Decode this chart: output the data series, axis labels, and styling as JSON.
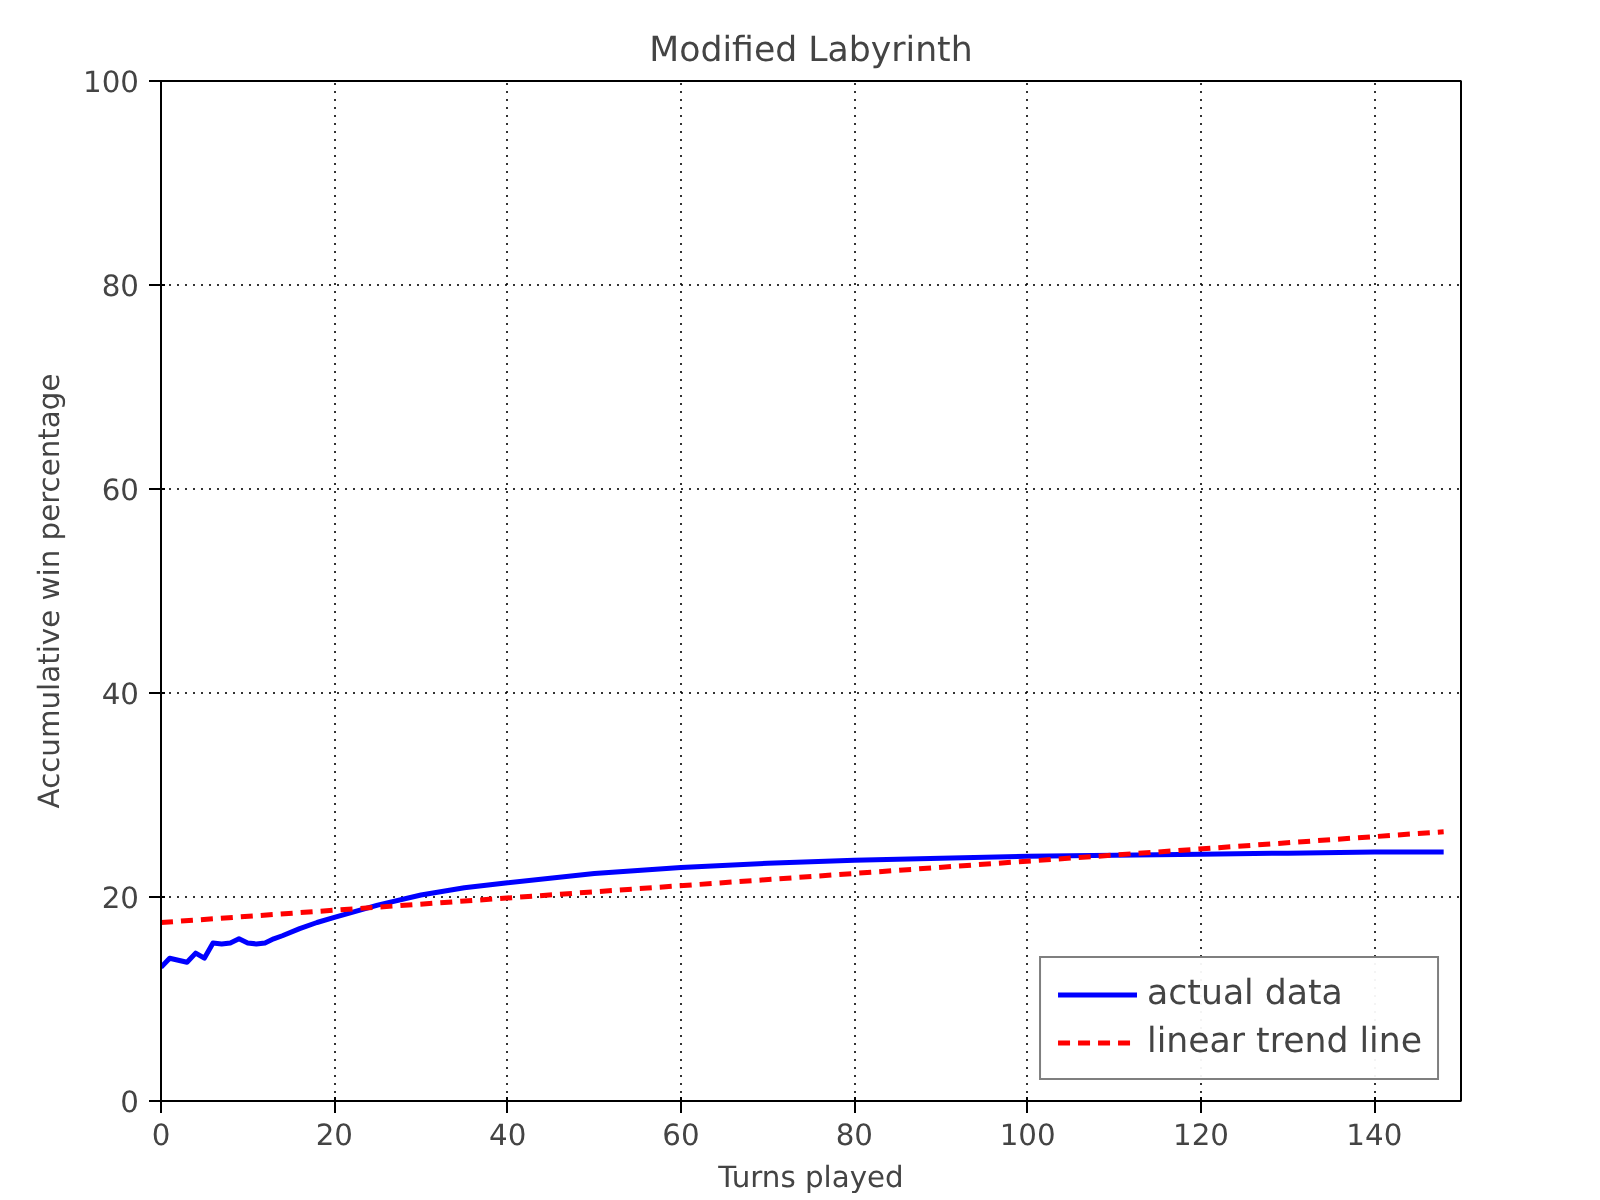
{
  "chart_data": {
    "type": "line",
    "title": "Modified Labyrinth",
    "xlabel": "Turns played",
    "ylabel": "Accumulative win percentage",
    "xlim": [
      0,
      150
    ],
    "ylim": [
      0,
      100
    ],
    "xticks": [
      0,
      20,
      40,
      60,
      80,
      100,
      120,
      140
    ],
    "yticks": [
      0,
      20,
      40,
      60,
      80,
      100
    ],
    "grid": true,
    "legend": "bottom right",
    "series": [
      {
        "name": "actual data",
        "color": "#0000ff",
        "line_style": "solid",
        "x": [
          0,
          1,
          2,
          3,
          4,
          5,
          6,
          7,
          8,
          9,
          10,
          11,
          12,
          13,
          14,
          16,
          18,
          20,
          25,
          30,
          35,
          40,
          50,
          60,
          70,
          80,
          90,
          100,
          110,
          120,
          130,
          140,
          148
        ],
        "values": [
          13.1,
          14.0,
          13.8,
          13.6,
          14.5,
          14.0,
          15.5,
          15.4,
          15.5,
          15.9,
          15.5,
          15.4,
          15.5,
          15.9,
          16.2,
          16.9,
          17.5,
          18.0,
          19.2,
          20.2,
          20.9,
          21.4,
          22.3,
          22.9,
          23.3,
          23.6,
          23.8,
          24.0,
          24.1,
          24.2,
          24.3,
          24.4,
          24.4
        ]
      },
      {
        "name": "linear trend line",
        "color": "#ff0000",
        "line_style": "dashed",
        "x": [
          0,
          148
        ],
        "values": [
          17.5,
          26.4
        ]
      }
    ]
  }
}
